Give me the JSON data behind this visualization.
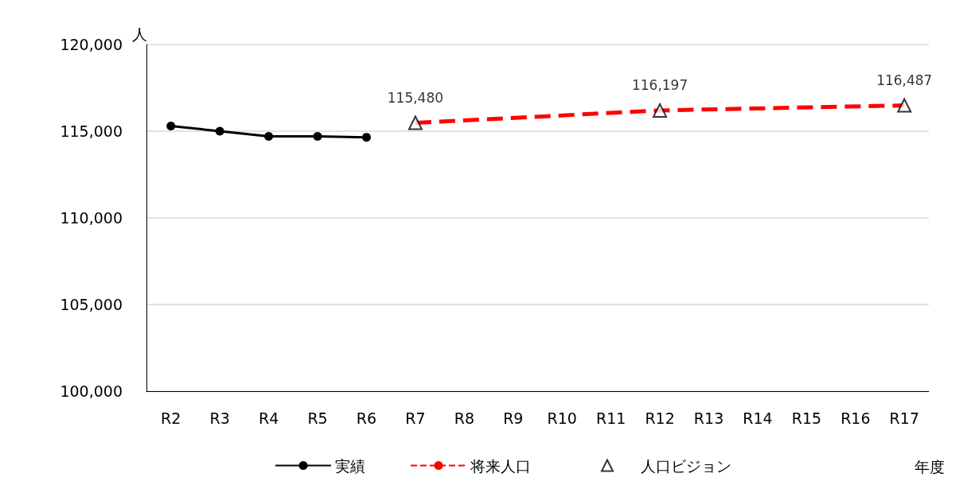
{
  "chart_data": {
    "type": "line",
    "ylabel": "人",
    "annotations": [
      "年度"
    ],
    "categories": [
      "R2",
      "R3",
      "R4",
      "R5",
      "R6",
      "R7",
      "R8",
      "R9",
      "R10",
      "R11",
      "R12",
      "R13",
      "R14",
      "R15",
      "R16",
      "R17"
    ],
    "series": [
      {
        "name": "実績",
        "color": "#000000",
        "marker": "circle",
        "line_style": "solid",
        "values": [
          115300,
          115000,
          114700,
          114700,
          114650,
          null,
          null,
          null,
          null,
          null,
          null,
          null,
          null,
          null,
          null,
          null
        ]
      },
      {
        "name": "将来人口",
        "color": "#ff0000",
        "marker": "none",
        "line_style": "dashed",
        "values": [
          null,
          null,
          null,
          null,
          null,
          115480,
          null,
          null,
          null,
          null,
          116197,
          null,
          null,
          null,
          null,
          116487
        ]
      },
      {
        "name": "人口ビジョン",
        "type": "scatter",
        "color": "#000000",
        "marker": "triangle",
        "values": [
          null,
          null,
          null,
          null,
          null,
          115480,
          null,
          null,
          null,
          null,
          116197,
          null,
          null,
          null,
          null,
          116487
        ],
        "value_labels": [
          null,
          null,
          null,
          null,
          null,
          "115,480",
          null,
          null,
          null,
          null,
          "116,197",
          null,
          null,
          null,
          null,
          "116,487"
        ]
      }
    ],
    "ylim": [
      100000,
      120000
    ],
    "yticks": [
      {
        "value": 100000,
        "label": "100,000"
      },
      {
        "value": 105000,
        "label": "105,000"
      },
      {
        "value": 110000,
        "label": "110,000"
      },
      {
        "value": 115000,
        "label": "115,000"
      },
      {
        "value": 120000,
        "label": "120,000"
      }
    ],
    "grid": "y",
    "legend": "bottom"
  }
}
